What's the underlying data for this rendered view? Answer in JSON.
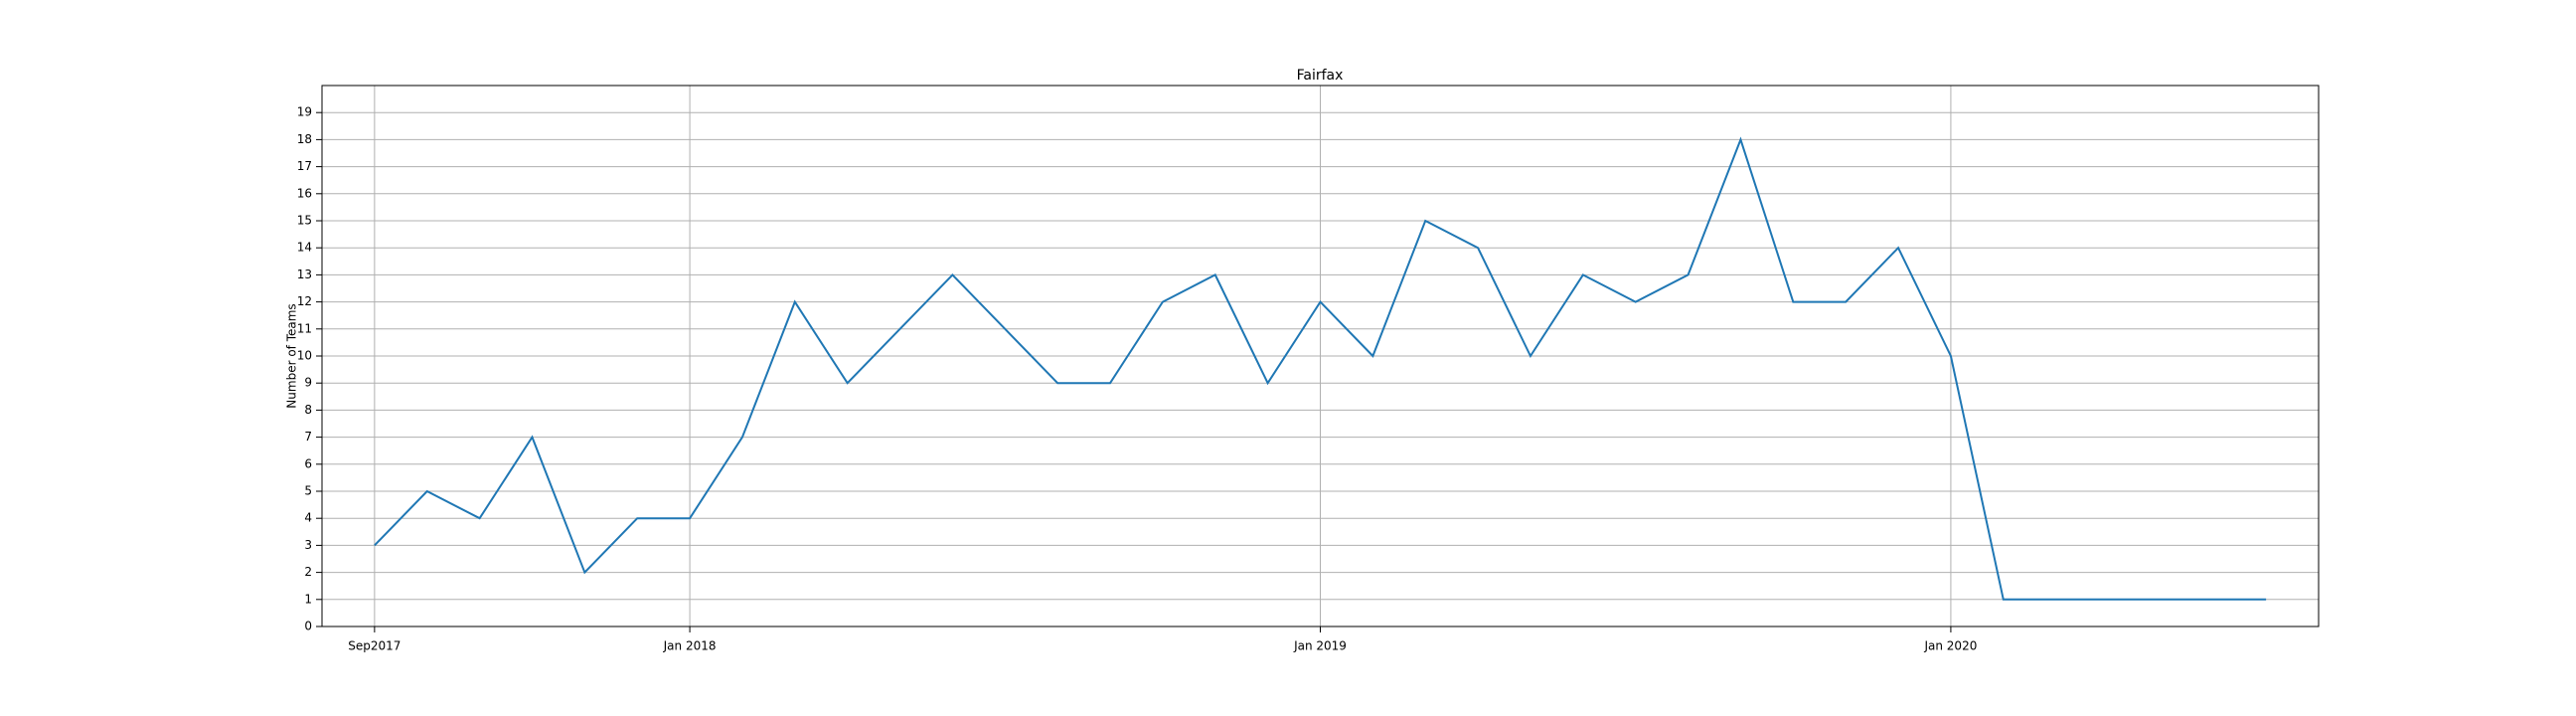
{
  "chart_data": {
    "type": "line",
    "title": "Fairfax",
    "y_label": "Number of Teams",
    "categories": [
      "Sep2017",
      null,
      null,
      null,
      null,
      null,
      "Jan 2018",
      null,
      null,
      null,
      null,
      null,
      null,
      null,
      null,
      null,
      null,
      null,
      "Jan 2019",
      null,
      null,
      null,
      null,
      null,
      null,
      null,
      null,
      null,
      null,
      null,
      "Jan 2020",
      null,
      null,
      null,
      null,
      null,
      null
    ],
    "series": [
      {
        "name": "Fairfax",
        "color": "#1f77b4",
        "values": [
          3,
          5,
          4,
          7,
          2,
          4,
          4,
          7,
          12,
          9,
          11,
          13,
          11,
          9,
          9,
          12,
          13,
          9,
          12,
          10,
          15,
          14,
          10,
          13,
          12,
          13,
          18,
          12,
          12,
          14,
          10,
          1,
          1,
          1,
          1,
          1,
          1
        ]
      }
    ],
    "ylim": [
      0,
      20
    ],
    "yticks": [
      0,
      1,
      2,
      3,
      4,
      5,
      6,
      7,
      8,
      9,
      10,
      11,
      12,
      13,
      14,
      15,
      16,
      17,
      18,
      19
    ],
    "grid": true
  }
}
